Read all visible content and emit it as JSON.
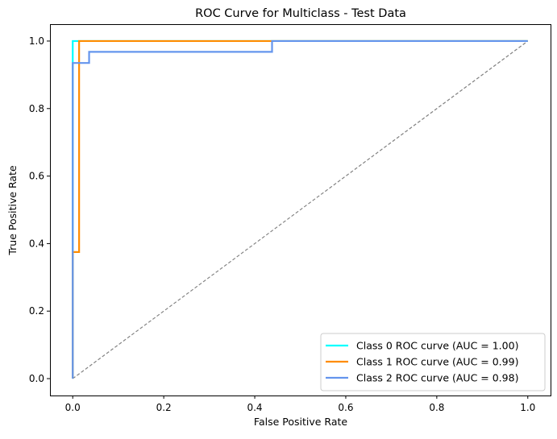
{
  "chart_data": {
    "type": "line",
    "title": "ROC Curve for Multiclass - Test Data",
    "xlabel": "False Positive Rate",
    "ylabel": "True Positive Rate",
    "xlim": [
      -0.05,
      1.05
    ],
    "ylim": [
      -0.05,
      1.05
    ],
    "xticks": [
      0.0,
      0.2,
      0.4,
      0.6,
      0.8,
      1.0
    ],
    "xtick_labels": [
      "0.0",
      "0.2",
      "0.4",
      "0.6",
      "0.8",
      "1.0"
    ],
    "yticks": [
      0.0,
      0.2,
      0.4,
      0.6,
      0.8,
      1.0
    ],
    "ytick_labels": [
      "0.0",
      "0.2",
      "0.4",
      "0.6",
      "0.8",
      "1.0"
    ],
    "grid": false,
    "legend_position": "lower right",
    "series": [
      {
        "name": "Class 0 ROC curve (AUC = 1.00)",
        "color": "#00ffff",
        "x": [
          0.0,
          0.0,
          0.0,
          1.0
        ],
        "y": [
          0.0,
          0.94,
          1.0,
          1.0
        ]
      },
      {
        "name": "Class 1 ROC curve (AUC = 0.99)",
        "color": "#ff8c00",
        "x": [
          0.0,
          0.0,
          0.014,
          0.014,
          1.0
        ],
        "y": [
          0.0,
          0.375,
          0.375,
          1.0,
          1.0
        ]
      },
      {
        "name": "Class 2 ROC curve (AUC = 0.98)",
        "color": "#6495ed",
        "x": [
          0.0,
          0.0,
          0.036,
          0.036,
          0.438,
          0.438,
          1.0
        ],
        "y": [
          0.0,
          0.935,
          0.935,
          0.968,
          0.968,
          1.0,
          1.0
        ]
      }
    ],
    "reference_line": {
      "color": "#808080",
      "style": "dashed",
      "x": [
        0.0,
        1.0
      ],
      "y": [
        0.0,
        1.0
      ]
    }
  }
}
